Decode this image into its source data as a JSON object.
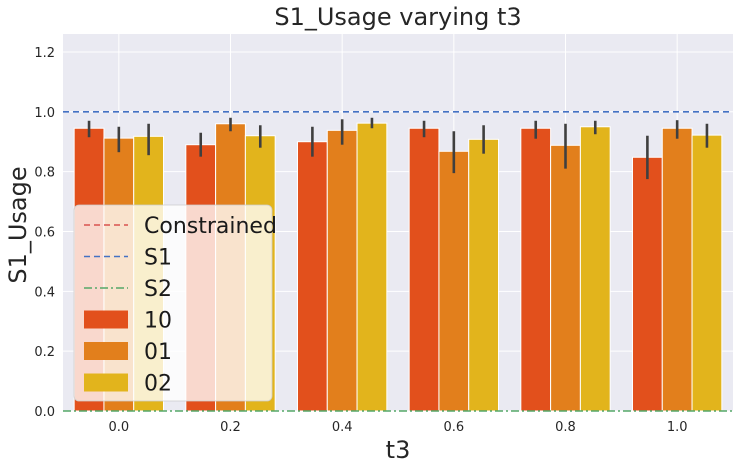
{
  "chart_data": {
    "type": "bar",
    "title": "S1_Usage varying t3",
    "xlabel": "t3",
    "ylabel": "S1_Usage",
    "categories": [
      "0.0",
      "0.2",
      "0.4",
      "0.6",
      "0.8",
      "1.0"
    ],
    "ylim": [
      0,
      1.26
    ],
    "yticks": [
      "0.0",
      "0.2",
      "0.4",
      "0.6",
      "0.8",
      "1.0",
      "1.2"
    ],
    "grid": true,
    "legend_position": "lower-left",
    "series": [
      {
        "name": "10",
        "color": "#e2501c",
        "values": [
          0.945,
          0.89,
          0.9,
          0.945,
          0.945,
          0.848
        ],
        "err_low": [
          0.915,
          0.85,
          0.85,
          0.915,
          0.91,
          0.775
        ],
        "err_high": [
          0.97,
          0.93,
          0.95,
          0.97,
          0.97,
          0.92
        ]
      },
      {
        "name": "01",
        "color": "#e27f1c",
        "values": [
          0.912,
          0.96,
          0.938,
          0.868,
          0.888,
          0.945
        ],
        "err_low": [
          0.865,
          0.935,
          0.89,
          0.795,
          0.81,
          0.91
        ],
        "err_high": [
          0.95,
          0.98,
          0.975,
          0.935,
          0.96,
          0.972
        ]
      },
      {
        "name": "02",
        "color": "#e2b41c",
        "values": [
          0.918,
          0.92,
          0.962,
          0.908,
          0.95,
          0.922
        ],
        "err_low": [
          0.855,
          0.88,
          0.945,
          0.86,
          0.925,
          0.88
        ],
        "err_high": [
          0.96,
          0.955,
          0.98,
          0.955,
          0.97,
          0.96
        ]
      }
    ],
    "reference_lines": [
      {
        "name": "Constrained",
        "color": "#d9534f",
        "style": "dashed"
      },
      {
        "name": "S1",
        "color": "#4472c4",
        "style": "dashed",
        "value": 1.0
      },
      {
        "name": "S2",
        "color": "#55a868",
        "style": "dashdot",
        "value": 0.0
      }
    ]
  }
}
